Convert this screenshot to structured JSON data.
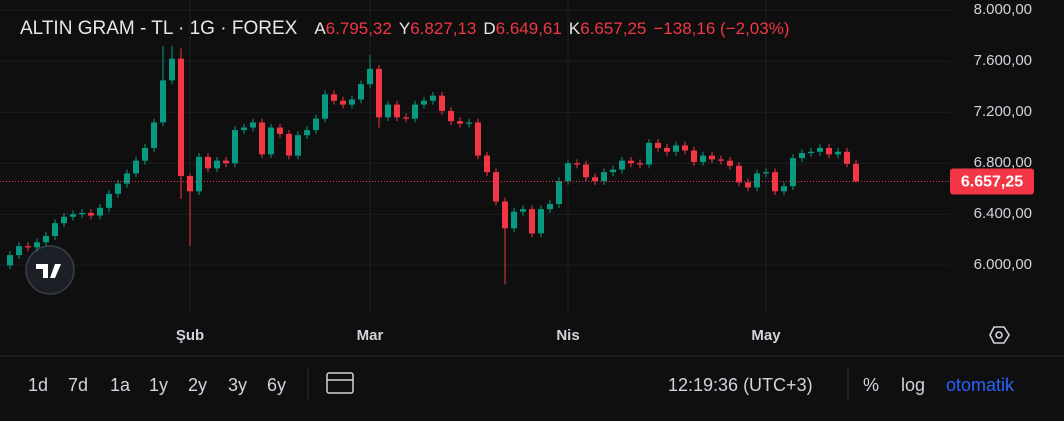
{
  "chart_data": {
    "type": "candlestick",
    "title": "ALTIN GRAM - TL · 1G · FOREX",
    "ohlc_labels": [
      {
        "key": "A",
        "label": "6.795,32"
      },
      {
        "key": "Y",
        "label": "6.827,13"
      },
      {
        "key": "D",
        "label": "6.649,61"
      },
      {
        "key": "K",
        "label": "6.657,25"
      }
    ],
    "change_label": "−138,16 (−2,03%)",
    "last_label": "6.657,25",
    "up_color": "#089981",
    "down_color": "#f23645",
    "grid": true,
    "ylim": [
      5610,
      8080
    ],
    "yticks": [
      {
        "value": 6000,
        "label": "6.000,00"
      },
      {
        "value": 6400,
        "label": "6.400,00"
      },
      {
        "value": 6800,
        "label": "6.800,00"
      },
      {
        "value": 7200,
        "label": "7.200,00"
      },
      {
        "value": 7600,
        "label": "7.600,00"
      },
      {
        "value": 8000,
        "label": "8.000,00"
      }
    ],
    "categories": [
      null,
      null,
      null,
      null,
      null,
      null,
      null,
      null,
      null,
      null,
      null,
      null,
      null,
      null,
      null,
      null,
      null,
      null,
      null,
      null,
      "Şub",
      null,
      null,
      null,
      null,
      null,
      null,
      null,
      null,
      null,
      null,
      null,
      null,
      null,
      null,
      null,
      null,
      null,
      null,
      null,
      "Mar",
      null,
      null,
      null,
      null,
      null,
      null,
      null,
      null,
      null,
      null,
      null,
      null,
      null,
      null,
      null,
      null,
      null,
      null,
      null,
      null,
      null,
      "Nis",
      null,
      null,
      null,
      null,
      null,
      null,
      null,
      null,
      null,
      null,
      null,
      null,
      null,
      null,
      null,
      null,
      null,
      null,
      null,
      null,
      null,
      "May",
      null,
      null,
      null,
      null,
      null,
      null,
      null,
      null,
      null,
      null
    ],
    "open": [
      6000,
      6080,
      6150,
      6140,
      6180,
      6230,
      6330,
      6380,
      6400,
      6410,
      6390,
      6450,
      6560,
      6640,
      6720,
      6820,
      6920,
      7120,
      7450,
      7620,
      6700,
      6580,
      6850,
      6760,
      6820,
      6800,
      7060,
      7080,
      7120,
      6870,
      7080,
      7030,
      6860,
      7020,
      7060,
      7150,
      7340,
      7290,
      7260,
      7300,
      7420,
      7540,
      7160,
      7260,
      7160,
      7150,
      7260,
      7290,
      7330,
      7210,
      7130,
      7110,
      7120,
      6860,
      6730,
      6500,
      6290,
      6420,
      6440,
      6250,
      6440,
      6480,
      6660,
      6800,
      6790,
      6690,
      6660,
      6730,
      6750,
      6820,
      6800,
      6790,
      6960,
      6920,
      6890,
      6940,
      6900,
      6810,
      6860,
      6830,
      6820,
      6780,
      6650,
      6610,
      6720,
      6730,
      6580,
      6620,
      6840,
      6880,
      6890,
      6920,
      6870,
      6890,
      6795.32
    ],
    "high": [
      6110,
      6180,
      6180,
      6210,
      6260,
      6360,
      6410,
      6430,
      6440,
      6440,
      6480,
      6590,
      6670,
      6750,
      6850,
      6950,
      7150,
      7720,
      7720,
      7700,
      6720,
      6880,
      6880,
      6850,
      6850,
      7090,
      7110,
      7150,
      7150,
      7110,
      7110,
      7060,
      7050,
      7090,
      7180,
      7370,
      7370,
      7320,
      7330,
      7450,
      7650,
      7570,
      7290,
      7290,
      7190,
      7290,
      7320,
      7360,
      7360,
      7240,
      7160,
      7150,
      7150,
      6890,
      6760,
      6530,
      6450,
      6470,
      6470,
      6470,
      6510,
      6690,
      6830,
      6830,
      6820,
      6720,
      6760,
      6780,
      6850,
      6850,
      6830,
      6990,
      6990,
      6950,
      6970,
      6970,
      6930,
      6890,
      6890,
      6860,
      6850,
      6810,
      6680,
      6750,
      6760,
      6760,
      6650,
      6870,
      6910,
      6920,
      6950,
      6950,
      6920,
      6920,
      6827.13
    ],
    "low": [
      5970,
      6050,
      6110,
      6110,
      6150,
      6200,
      6300,
      6350,
      6370,
      6360,
      6360,
      6420,
      6530,
      6610,
      6690,
      6790,
      6890,
      7090,
      7420,
      6520,
      6150,
      6550,
      6730,
      6730,
      6770,
      6770,
      7030,
      7050,
      6840,
      6840,
      7000,
      6830,
      6830,
      6990,
      7030,
      7120,
      7260,
      7230,
      7230,
      7270,
      7390,
      7080,
      7130,
      7130,
      7120,
      7120,
      7230,
      7260,
      7180,
      7100,
      7080,
      7080,
      6830,
      6700,
      6470,
      5850,
      6260,
      6390,
      6220,
      6220,
      6410,
      6450,
      6630,
      6760,
      6660,
      6630,
      6630,
      6700,
      6720,
      6770,
      6760,
      6760,
      6890,
      6860,
      6860,
      6870,
      6780,
      6780,
      6800,
      6790,
      6750,
      6620,
      6580,
      6580,
      6690,
      6550,
      6550,
      6590,
      6810,
      6850,
      6860,
      6840,
      6840,
      6770,
      6649.61
    ],
    "close": [
      6080,
      6150,
      6140,
      6180,
      6230,
      6330,
      6380,
      6400,
      6410,
      6390,
      6450,
      6560,
      6640,
      6720,
      6820,
      6920,
      7120,
      7450,
      7620,
      6700,
      6580,
      6850,
      6760,
      6820,
      6800,
      7060,
      7080,
      7120,
      6870,
      7080,
      7030,
      6860,
      7020,
      7060,
      7150,
      7340,
      7290,
      7260,
      7300,
      7420,
      7540,
      7160,
      7260,
      7160,
      7150,
      7260,
      7290,
      7330,
      7210,
      7130,
      7110,
      7120,
      6860,
      6730,
      6500,
      6290,
      6420,
      6440,
      6250,
      6440,
      6480,
      6660,
      6800,
      6790,
      6690,
      6660,
      6730,
      6750,
      6820,
      6800,
      6790,
      6960,
      6920,
      6890,
      6940,
      6900,
      6810,
      6860,
      6830,
      6820,
      6780,
      6650,
      6610,
      6720,
      6730,
      6580,
      6620,
      6840,
      6880,
      6890,
      6920,
      6870,
      6890,
      6795.32,
      6657.25
    ]
  },
  "toolbar": {
    "ranges": [
      "1d",
      "7d",
      "1a",
      "1y",
      "2y",
      "3y",
      "6y"
    ],
    "time": "12:19:36 (UTC+3)",
    "percent": "%",
    "log": "log",
    "auto": "otomatik"
  }
}
